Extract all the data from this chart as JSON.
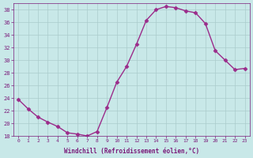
{
  "x": [
    0,
    1,
    2,
    3,
    4,
    5,
    6,
    7,
    8,
    9,
    10,
    11,
    12,
    13,
    14,
    15,
    16,
    17,
    18,
    19,
    20,
    21,
    22,
    23
  ],
  "y": [
    23.8,
    22.3,
    21.0,
    20.2,
    19.5,
    18.5,
    18.3,
    18.0,
    18.7,
    22.5,
    26.5,
    29.0,
    32.5,
    36.3,
    38.0,
    38.5,
    38.3,
    37.8,
    37.5,
    35.8,
    31.5,
    30.0,
    28.5,
    28.7
  ],
  "line_color": "#9B2B8A",
  "marker": "D",
  "marker_size": 2.5,
  "bg_color": "#C8E8E8",
  "grid_color": "#AACCCC",
  "xlabel": "Windchill (Refroidissement éolien,°C)",
  "xlabel_color": "#7B1B7A",
  "tick_color": "#7B1B7A",
  "ylim": [
    18,
    39
  ],
  "yticks": [
    18,
    20,
    22,
    24,
    26,
    28,
    30,
    32,
    34,
    36,
    38
  ],
  "xlim": [
    -0.5,
    23.5
  ],
  "xticks": [
    0,
    1,
    2,
    3,
    4,
    5,
    6,
    7,
    8,
    9,
    10,
    11,
    12,
    13,
    14,
    15,
    16,
    17,
    18,
    19,
    20,
    21,
    22,
    23
  ]
}
